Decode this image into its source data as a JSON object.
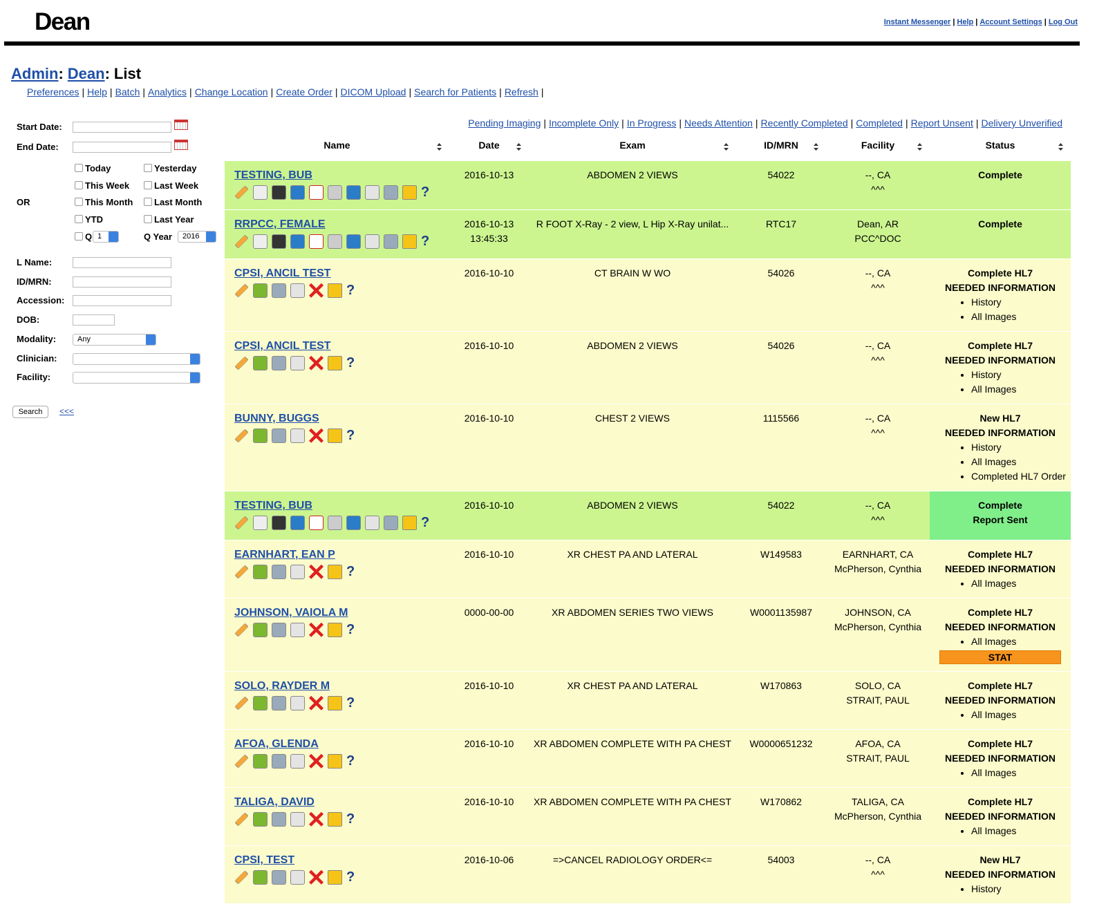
{
  "header": {
    "logo": "Dean",
    "links": [
      "Instant Messenger",
      "Help",
      "Account Settings",
      "Log Out"
    ],
    "separator": "|"
  },
  "breadcrumb": {
    "links": [
      "Admin",
      "Dean"
    ],
    "current": "List",
    "separator": ":"
  },
  "nav": {
    "links": [
      "Preferences",
      "Help",
      "Batch",
      "Analytics",
      "Change Location",
      "Create Order",
      "DICOM Upload",
      "Search for Patients",
      "Refresh"
    ],
    "separator": "|"
  },
  "filters": {
    "start_date": "Start Date:",
    "end_date": "End Date:",
    "or": "OR",
    "periods": [
      [
        "Today",
        "Yesterday"
      ],
      [
        "This Week",
        "Last Week"
      ],
      [
        "This Month",
        "Last Month"
      ],
      [
        "YTD",
        "Last Year"
      ]
    ],
    "quarter": {
      "label": "Q",
      "value": "1"
    },
    "quarter_year": {
      "label": "Q Year",
      "value": "2016"
    },
    "fields": [
      {
        "label": "L Name:"
      },
      {
        "label": "ID/MRN:"
      },
      {
        "label": "Accession:"
      },
      {
        "label": "DOB:"
      },
      {
        "label": "Modality:",
        "value": "Any"
      },
      {
        "label": "Clinician:"
      },
      {
        "label": "Facility:"
      }
    ],
    "search": "Search",
    "collapse": "<<<"
  },
  "status_filters": {
    "links": [
      "Pending Imaging",
      "Incomplete Only",
      "In Progress",
      "Needs Attention",
      "Recently Completed",
      "Completed",
      "Report Unsent",
      "Delivery Unverified"
    ],
    "separator": "|"
  },
  "table": {
    "columns": [
      "Name",
      "Date",
      "Exam",
      "ID/MRN",
      "Facility",
      "Status"
    ],
    "help_icon": "?",
    "rows": [
      {
        "name": "TESTING, BUB",
        "date": [
          "2016-10-13"
        ],
        "exam": "ABDOMEN 2 VIEWS",
        "id": "54022",
        "facility": [
          "--, CA",
          "^^^"
        ],
        "status": [
          "Complete"
        ],
        "color": "#ccf590"
      },
      {
        "name": "RRPCC, FEMALE",
        "date": [
          "2016-10-13",
          "13:45:33"
        ],
        "exam": "R FOOT X-Ray - 2 view, L Hip X-Ray unilat...",
        "id": "RTC17",
        "facility": [
          "Dean, AR",
          "PCC^DOC"
        ],
        "status": [
          "Complete"
        ],
        "color": "#ccf590"
      },
      {
        "name": "CPSI, ANCIL TEST",
        "date": [
          "2016-10-10"
        ],
        "exam": "CT BRAIN W WO",
        "id": "54026",
        "facility": [
          "--, CA",
          "^^^"
        ],
        "status": [
          "Complete HL7",
          "NEEDED INFORMATION"
        ],
        "needed": [
          "History",
          "All Images"
        ],
        "color": "#fbfbcb"
      },
      {
        "name": "CPSI, ANCIL TEST",
        "date": [
          "2016-10-10"
        ],
        "exam": "ABDOMEN 2 VIEWS",
        "id": "54026",
        "facility": [
          "--, CA",
          "^^^"
        ],
        "status": [
          "Complete HL7",
          "NEEDED INFORMATION"
        ],
        "needed": [
          "History",
          "All Images"
        ],
        "color": "#fbfbcb"
      },
      {
        "name": "BUNNY, BUGGS",
        "date": [
          "2016-10-10"
        ],
        "exam": "CHEST 2 VIEWS",
        "id": "1115566",
        "facility": [
          "--, CA",
          "^^^"
        ],
        "status": [
          "New HL7",
          "NEEDED INFORMATION"
        ],
        "needed": [
          "History",
          "All Images",
          "Completed HL7 Order"
        ],
        "color": "#fbfbcb"
      },
      {
        "name": "TESTING, BUB",
        "date": [
          "2016-10-10"
        ],
        "exam": "ABDOMEN 2 VIEWS",
        "id": "54022",
        "facility": [
          "--, CA",
          "^^^"
        ],
        "status": [
          "Complete",
          "Report Sent"
        ],
        "color": "#ccf590",
        "status_color": "#80ef8a"
      },
      {
        "name": "EARNHART, EAN P",
        "date": [
          "2016-10-10"
        ],
        "exam": "XR CHEST PA AND LATERAL",
        "id": "W149583",
        "facility": [
          "EARNHART, CA",
          "McPherson, Cynthia"
        ],
        "status": [
          "Complete HL7",
          "NEEDED INFORMATION"
        ],
        "needed": [
          "All Images"
        ],
        "color": "#fbfbcb"
      },
      {
        "name": "JOHNSON, VAIOLA M",
        "date": [
          "0000-00-00"
        ],
        "exam": "XR ABDOMEN SERIES TWO VIEWS",
        "id": "W0001135987",
        "facility": [
          "JOHNSON, CA",
          "McPherson, Cynthia"
        ],
        "status": [
          "Complete HL7",
          "NEEDED INFORMATION"
        ],
        "needed": [
          "All Images"
        ],
        "stat": "STAT",
        "color": "#fbfbcb"
      },
      {
        "name": "SOLO, RAYDER M",
        "date": [
          "2016-10-10"
        ],
        "exam": "XR CHEST PA AND LATERAL",
        "id": "W170863",
        "facility": [
          "SOLO, CA",
          "STRAIT, PAUL"
        ],
        "status": [
          "Complete HL7",
          "NEEDED INFORMATION"
        ],
        "needed": [
          "All Images"
        ],
        "color": "#fbfbcb"
      },
      {
        "name": "AFOA, GLENDA",
        "date": [
          "2016-10-10"
        ],
        "exam": "XR ABDOMEN COMPLETE WITH PA CHEST",
        "id": "W0000651232",
        "facility": [
          "AFOA, CA",
          "STRAIT, PAUL"
        ],
        "status": [
          "Complete HL7",
          "NEEDED INFORMATION"
        ],
        "needed": [
          "All Images"
        ],
        "color": "#fbfbcb"
      },
      {
        "name": "TALIGA, DAVID",
        "date": [
          "2016-10-10"
        ],
        "exam": "XR ABDOMEN COMPLETE WITH PA CHEST",
        "id": "W170862",
        "facility": [
          "TALIGA, CA",
          "McPherson, Cynthia"
        ],
        "status": [
          "Complete HL7",
          "NEEDED INFORMATION"
        ],
        "needed": [
          "All Images"
        ],
        "color": "#fbfbcb"
      },
      {
        "name": "CPSI, TEST",
        "date": [
          "2016-10-06"
        ],
        "exam": "=>CANCEL RADIOLOGY ORDER<=",
        "id": "54003",
        "facility": [
          "--, CA",
          "^^^"
        ],
        "status": [
          "New HL7",
          "NEEDED INFORMATION"
        ],
        "needed": [
          "History"
        ],
        "color": "#fbfbcb"
      }
    ]
  }
}
